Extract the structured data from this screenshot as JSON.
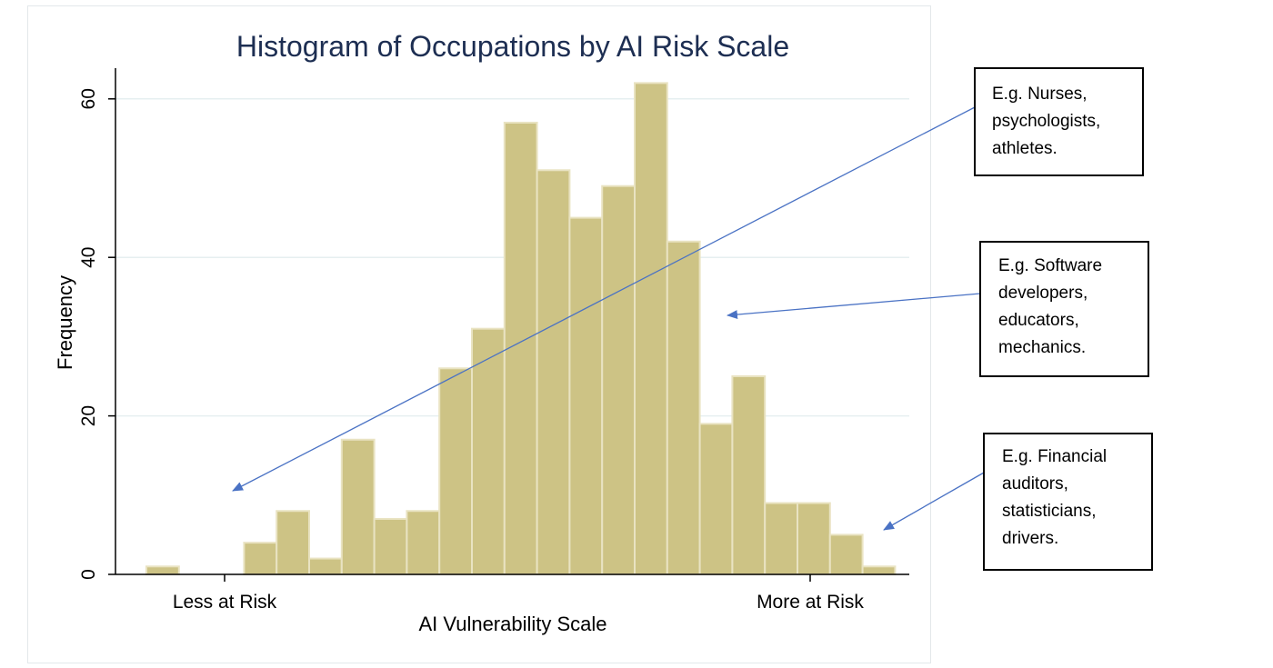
{
  "chart_data": {
    "type": "bar",
    "title": "Histogram of Occupations by AI Risk Scale",
    "xlabel": "AI Vulnerability Scale",
    "ylabel": "Frequency",
    "ylim": [
      0,
      64
    ],
    "yticks": [
      0,
      20,
      40,
      60
    ],
    "ytick_labels": [
      "0",
      "20",
      "40",
      "60"
    ],
    "xtick_labels": [
      "Less at Risk",
      "More at Risk"
    ],
    "grid": true,
    "bar_color": "#cdc385",
    "bar_edge_color": "#e9e3c2",
    "grid_color": "#e6eff0",
    "bins": 23,
    "values": [
      1,
      0,
      0,
      4,
      8,
      2,
      17,
      7,
      8,
      26,
      31,
      57,
      51,
      45,
      49,
      62,
      42,
      19,
      25,
      9,
      9,
      5,
      1
    ]
  },
  "annotations": [
    {
      "lines": [
        "E.g. Nurses,",
        "psychologists,",
        "athletes."
      ]
    },
    {
      "lines": [
        "E.g. Software",
        "developers,",
        "educators,",
        "mechanics."
      ]
    },
    {
      "lines": [
        "E.g. Financial",
        "auditors,",
        "statisticians,",
        "drivers."
      ]
    }
  ],
  "arrow_color": "#4a72c4"
}
